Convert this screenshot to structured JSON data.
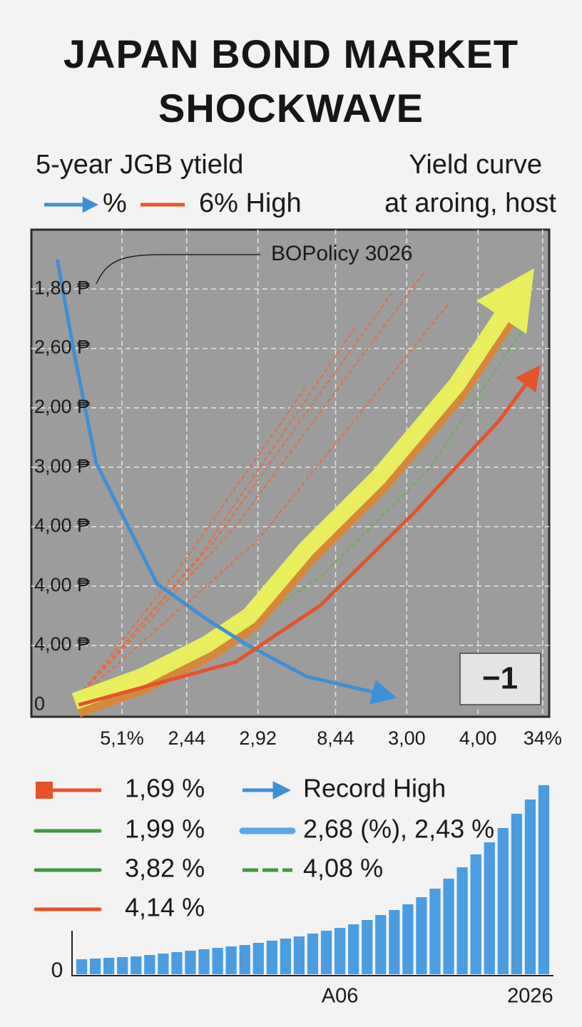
{
  "chart_data": [
    {
      "type": "line",
      "title": "JAPAN BOND MARKET SHOCKWAVE",
      "legend_title": "5-year JGB ytield",
      "subtitle_right": [
        "Yield curve",
        "at aroing, host"
      ],
      "annotation": "BOPolicy 3026",
      "badge": "−1",
      "xlim": [
        0,
        8
      ],
      "ylim": [
        -0.2,
        8
      ],
      "xticks": [
        {
          "value": 1.4,
          "label": "5,1%"
        },
        {
          "value": 2.4,
          "label": "2,44"
        },
        {
          "value": 3.5,
          "label": "2,92"
        },
        {
          "value": 4.7,
          "label": "8,44"
        },
        {
          "value": 5.8,
          "label": "3,00"
        },
        {
          "value": 6.9,
          "label": "4,00"
        },
        {
          "value": 7.9,
          "label": "34%"
        }
      ],
      "yticks": [
        0,
        {
          "value": 1,
          "label": "4,00 ₱"
        },
        {
          "value": 2,
          "label": "4,00 ₱"
        },
        {
          "value": 3,
          "label": "4,00 ₱"
        },
        {
          "value": 4,
          "label": "3,00 ₱"
        },
        {
          "value": 5,
          "label": "2,00 ₱"
        },
        {
          "value": 6,
          "label": "2,60 ₱"
        },
        {
          "value": 7,
          "label": "1,80 ₱"
        }
      ],
      "grid": true,
      "series": [
        {
          "name": "%",
          "color": "#3f8fd6",
          "style": "arrow",
          "x": [
            0.4,
            0.67,
            1.0,
            1.94,
            2.71,
            3.32,
            4.25,
            5.41
          ],
          "values": [
            7.5,
            5.87,
            4.07,
            2.04,
            1.44,
            1.02,
            0.48,
            0.18
          ]
        },
        {
          "name": "6% High",
          "color": "#e5532b",
          "style": "arrow",
          "x": [
            0.73,
            3.15,
            4.47,
            5.91,
            7.23,
            7.72
          ],
          "values": [
            0,
            0.72,
            1.68,
            3.23,
            4.79,
            5.51
          ]
        },
        {
          "color": "#e8ee5c",
          "style": "thick-arrow",
          "x": [
            0.67,
            1.72,
            2.71,
            3.37,
            4.25,
            5.36,
            6.57,
            7.45
          ],
          "values": [
            0.06,
            0.48,
            1.02,
            1.5,
            2.63,
            3.83,
            5.39,
            6.83
          ]
        },
        {
          "color": "#62b548",
          "style": "dashed",
          "x": [
            2.82,
            4.47,
            6.13,
            7.61
          ],
          "values": [
            0.96,
            2.16,
            3.95,
            6.35
          ]
        },
        {
          "color": "#ea6a3c",
          "style": "dashed",
          "x": [
            0.67,
            2.27,
            4.23
          ],
          "values": [
            0.06,
            2.28,
            5.33
          ]
        },
        {
          "color": "#ea6a3c",
          "style": "dashed",
          "x": [
            0.67,
            2.6,
            5.0
          ],
          "values": [
            0.06,
            2.51,
            6.35
          ]
        },
        {
          "color": "#ea6a3c",
          "style": "dashed",
          "x": [
            0.67,
            2.82,
            5.58
          ],
          "values": [
            0.06,
            2.75,
            6.95
          ]
        },
        {
          "color": "#ea6a3c",
          "style": "dashed",
          "x": [
            0.67,
            3.15,
            6.1
          ],
          "values": [
            0.06,
            3.0,
            7.33
          ]
        },
        {
          "color": "#ea6a3c",
          "style": "dashed",
          "x": [
            0.67,
            3.48,
            6.46
          ],
          "values": [
            0.06,
            2.75,
            6.77
          ]
        }
      ],
      "legend_items": [
        {
          "label": "1,69 %",
          "color": "#e5532b",
          "style": "square-line"
        },
        {
          "label": "Record High",
          "color": "#3f8fd6",
          "style": "arrow"
        },
        {
          "label": "1,99 %",
          "color": "#3f9a3f",
          "style": "line"
        },
        {
          "label": "2,68 (%), 2,43 %",
          "color": "#5aa6e6",
          "style": "thick-line"
        },
        {
          "label": "3,82 %",
          "color": "#3f9a3f",
          "style": "line"
        },
        {
          "label": "4,08 %",
          "color": "#3f9a3f",
          "style": "dashed"
        },
        {
          "label": "4,14 %",
          "color": "#e5532b",
          "style": "line"
        }
      ]
    },
    {
      "type": "bar",
      "color": "#4a9de0",
      "ylim": [
        0,
        270
      ],
      "yticks": [
        0
      ],
      "categories": [
        null,
        null,
        null,
        null,
        null,
        null,
        null,
        null,
        null,
        null,
        null,
        null,
        null,
        null,
        null,
        null,
        null,
        null,
        null,
        "A06",
        null,
        null,
        null,
        null,
        null,
        null,
        null,
        null,
        null,
        null,
        null,
        null,
        null,
        "2026",
        null
      ],
      "values": [
        21,
        22,
        23,
        24,
        25,
        27,
        29,
        31,
        33,
        35,
        37,
        39,
        41,
        44,
        47,
        50,
        53,
        57,
        61,
        65,
        70,
        76,
        83,
        90,
        98,
        108,
        120,
        134,
        150,
        168,
        185,
        205,
        225,
        245,
        265
      ]
    }
  ]
}
